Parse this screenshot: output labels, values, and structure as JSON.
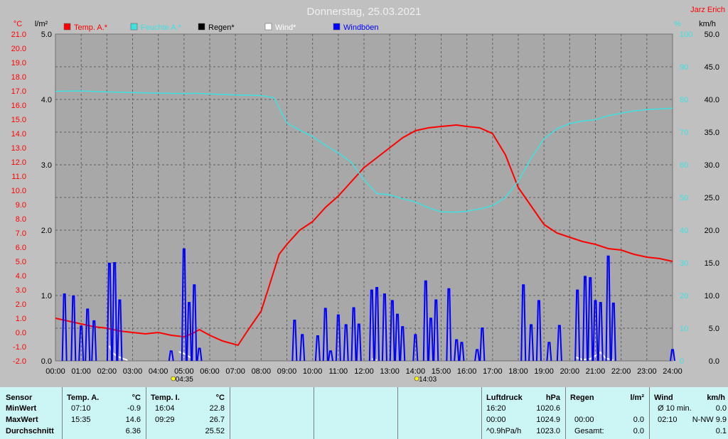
{
  "title": "Donnerstag, 25.03.2021",
  "station": "Jarz Erich",
  "units": {
    "temp": "°C",
    "rain": "l/m²",
    "hum": "%",
    "wind": "km/h"
  },
  "legend": [
    {
      "label": "Temp. A.*",
      "color": "#ff0000"
    },
    {
      "label": "Feuchte A.*",
      "color": "#40e0e0"
    },
    {
      "label": "Regen*",
      "color": "#000000"
    },
    {
      "label": "Wind*",
      "color": "#ffffff"
    },
    {
      "label": "Windböen",
      "color": "#0000ff"
    }
  ],
  "markers": [
    {
      "x": "04:35",
      "label": "04:35"
    },
    {
      "x": "14:03",
      "label": "14:03"
    }
  ],
  "chart_data": {
    "type": "line",
    "x_ticks": [
      "00:00",
      "01:00",
      "02:00",
      "03:00",
      "04:00",
      "05:00",
      "06:00",
      "07:00",
      "08:00",
      "09:00",
      "10:00",
      "11:00",
      "12:00",
      "13:00",
      "14:00",
      "15:00",
      "16:00",
      "17:00",
      "18:00",
      "19:00",
      "20:00",
      "21:00",
      "22:00",
      "23:00",
      "24:00"
    ],
    "temp_axis": {
      "label": "°C",
      "min": -2.0,
      "max": 21.0,
      "ticks": [
        "-2.0",
        "-1.0",
        "0.0",
        "1.0",
        "2.0",
        "3.0",
        "4.0",
        "5.0",
        "6.0",
        "7.0",
        "8.0",
        "9.0",
        "10.0",
        "11.0",
        "12.0",
        "13.0",
        "14.0",
        "15.0",
        "16.0",
        "17.0",
        "18.0",
        "19.0",
        "20.0",
        "21.0"
      ]
    },
    "rain_axis": {
      "label": "l/m²",
      "min": 0,
      "max": 5.0,
      "ticks": [
        "0.0",
        "1.0",
        "2.0",
        "3.0",
        "4.0",
        "5.0"
      ]
    },
    "hum_axis": {
      "label": "%",
      "min": 0,
      "max": 100,
      "ticks": [
        "0",
        "10",
        "20",
        "30",
        "40",
        "50",
        "60",
        "70",
        "80",
        "90",
        "100"
      ]
    },
    "wind_axis": {
      "label": "km/h",
      "min": 0,
      "max": 50,
      "ticks": [
        "0.0",
        "5.0",
        "10.0",
        "15.0",
        "20.0",
        "25.0",
        "30.0",
        "35.0",
        "40.0",
        "45.0",
        "50.0"
      ]
    },
    "series": [
      {
        "name": "Temp. A.*",
        "color": "#ff0000",
        "axis": "temp",
        "points": [
          [
            0,
            1.0
          ],
          [
            0.5,
            0.8
          ],
          [
            1,
            0.6
          ],
          [
            1.5,
            0.4
          ],
          [
            2,
            0.3
          ],
          [
            2.5,
            0.1
          ],
          [
            3,
            0.0
          ],
          [
            3.5,
            -0.1
          ],
          [
            4,
            0.0
          ],
          [
            4.5,
            -0.2
          ],
          [
            5,
            -0.3
          ],
          [
            5.3,
            -0.1
          ],
          [
            5.6,
            0.2
          ],
          [
            6,
            -0.2
          ],
          [
            6.5,
            -0.6
          ],
          [
            7.1,
            -0.9
          ],
          [
            7.5,
            0.2
          ],
          [
            8,
            1.5
          ],
          [
            8.3,
            3.2
          ],
          [
            8.7,
            5.5
          ],
          [
            9,
            6.2
          ],
          [
            9.5,
            7.2
          ],
          [
            10,
            7.8
          ],
          [
            10.5,
            8.8
          ],
          [
            11,
            9.6
          ],
          [
            11.5,
            10.6
          ],
          [
            12,
            11.6
          ],
          [
            12.5,
            12.3
          ],
          [
            13,
            13.0
          ],
          [
            13.5,
            13.7
          ],
          [
            14,
            14.2
          ],
          [
            14.5,
            14.4
          ],
          [
            15,
            14.5
          ],
          [
            15.6,
            14.6
          ],
          [
            16,
            14.5
          ],
          [
            16.5,
            14.4
          ],
          [
            17,
            14.0
          ],
          [
            17.5,
            12.5
          ],
          [
            18,
            10.2
          ],
          [
            18.5,
            8.9
          ],
          [
            19,
            7.6
          ],
          [
            19.5,
            7.0
          ],
          [
            20,
            6.7
          ],
          [
            20.5,
            6.4
          ],
          [
            21,
            6.2
          ],
          [
            21.5,
            5.9
          ],
          [
            22,
            5.8
          ],
          [
            22.5,
            5.5
          ],
          [
            23,
            5.3
          ],
          [
            23.5,
            5.2
          ],
          [
            24,
            5.0
          ]
        ]
      },
      {
        "name": "Feuchte A.*",
        "color": "#40e0e0",
        "axis": "hum",
        "points": [
          [
            0,
            82.5
          ],
          [
            1,
            82.6
          ],
          [
            2,
            82.3
          ],
          [
            3,
            82.1
          ],
          [
            4,
            81.9
          ],
          [
            5,
            81.8
          ],
          [
            5.5,
            81.9
          ],
          [
            6,
            81.7
          ],
          [
            7,
            81.4
          ],
          [
            8,
            81.2
          ],
          [
            8.5,
            80.5
          ],
          [
            9,
            72.8
          ],
          [
            9.5,
            70.6
          ],
          [
            10,
            68.6
          ],
          [
            10.5,
            66.0
          ],
          [
            11,
            63.6
          ],
          [
            11.5,
            60.8
          ],
          [
            12,
            55.4
          ],
          [
            12.5,
            51.2
          ],
          [
            13,
            50.8
          ],
          [
            13.5,
            49.6
          ],
          [
            14,
            48.6
          ],
          [
            14.5,
            46.9
          ],
          [
            15,
            45.6
          ],
          [
            15.6,
            45.5
          ],
          [
            16,
            45.8
          ],
          [
            16.5,
            46.5
          ],
          [
            17,
            47.5
          ],
          [
            17.5,
            50.0
          ],
          [
            18,
            55.0
          ],
          [
            18.5,
            62.0
          ],
          [
            19,
            68.0
          ],
          [
            19.5,
            71.0
          ],
          [
            20,
            72.6
          ],
          [
            20.5,
            73.4
          ],
          [
            21,
            73.8
          ],
          [
            21.5,
            75.0
          ],
          [
            22,
            75.8
          ],
          [
            22.5,
            76.5
          ],
          [
            23,
            76.9
          ],
          [
            23.5,
            77.1
          ],
          [
            24,
            77.3
          ]
        ]
      },
      {
        "name": "Wind*",
        "color": "#ffffff",
        "axis": "wind",
        "points": [
          [
            2.1,
            2.3
          ],
          [
            2.2,
            1.3
          ],
          [
            2.4,
            0.7
          ],
          [
            2.6,
            0.4
          ],
          [
            2.8,
            0.1
          ],
          [
            4.8,
            1.4
          ],
          [
            5.0,
            1.1
          ],
          [
            5.3,
            0.4
          ],
          [
            12.3,
            0.3
          ],
          [
            12.5,
            0.1
          ],
          [
            20.2,
            0.6
          ],
          [
            20.5,
            0.2
          ],
          [
            20.8,
            0.3
          ],
          [
            21.2,
            1.3
          ],
          [
            21.4,
            0.4
          ],
          [
            21.7,
            0.1
          ]
        ]
      },
      {
        "name": "Windböen",
        "color": "#0000ff",
        "axis": "wind",
        "spikes": [
          [
            0.35,
            10.2
          ],
          [
            0.7,
            9.9
          ],
          [
            1.0,
            5.3
          ],
          [
            1.25,
            7.9
          ],
          [
            1.5,
            6.1
          ],
          [
            2.1,
            14.9
          ],
          [
            2.3,
            15.0
          ],
          [
            2.5,
            9.3
          ],
          [
            4.5,
            1.5
          ],
          [
            5.0,
            17.1
          ],
          [
            5.2,
            8.9
          ],
          [
            5.4,
            11.6
          ],
          [
            5.6,
            1.9
          ],
          [
            9.3,
            6.2
          ],
          [
            9.6,
            4.0
          ],
          [
            10.2,
            3.8
          ],
          [
            10.5,
            8.0
          ],
          [
            10.7,
            1.5
          ],
          [
            11.0,
            7.0
          ],
          [
            11.3,
            5.5
          ],
          [
            11.6,
            8.1
          ],
          [
            11.8,
            5.6
          ],
          [
            12.3,
            10.8
          ],
          [
            12.5,
            11.2
          ],
          [
            12.8,
            10.2
          ],
          [
            13.1,
            9.2
          ],
          [
            13.3,
            7.1
          ],
          [
            13.5,
            5.2
          ],
          [
            14.0,
            4.0
          ],
          [
            14.4,
            12.2
          ],
          [
            14.6,
            6.5
          ],
          [
            14.8,
            9.3
          ],
          [
            15.3,
            11.0
          ],
          [
            15.6,
            3.2
          ],
          [
            15.8,
            2.8
          ],
          [
            16.4,
            1.7
          ],
          [
            16.6,
            5.0
          ],
          [
            18.2,
            11.6
          ],
          [
            18.5,
            5.5
          ],
          [
            18.8,
            9.2
          ],
          [
            19.2,
            2.8
          ],
          [
            19.6,
            5.4
          ],
          [
            20.3,
            10.8
          ],
          [
            20.6,
            12.9
          ],
          [
            20.8,
            12.7
          ],
          [
            21.0,
            9.2
          ],
          [
            21.2,
            8.9
          ],
          [
            21.5,
            16.0
          ],
          [
            21.7,
            8.8
          ],
          [
            24.0,
            1.7
          ]
        ]
      }
    ]
  },
  "stats": {
    "headers": {
      "sensor": "Sensor",
      "temp_a": "Temp. A.",
      "temp_a_unit": "°C",
      "temp_i": "Temp. I.",
      "temp_i_unit": "°C",
      "pressure": "Luftdruck",
      "pressure_unit": "hPa",
      "rain": "Regen",
      "rain_unit": "l/m²",
      "wind": "Wind",
      "wind_unit": "km/h"
    },
    "rows": [
      {
        "label": "MinWert",
        "ta_time": "07:10",
        "ta_val": "-0.9",
        "ti_time": "16:04",
        "ti_val": "22.8",
        "p_time": "16:20",
        "p_val": "1020.6",
        "r_time": "",
        "r_val": "",
        "w_time": "Ø 10 min.",
        "w_val": "0.0"
      },
      {
        "label": "MaxWert",
        "ta_time": "15:35",
        "ta_val": "14.6",
        "ti_time": "09:29",
        "ti_val": "26.7",
        "p_time": "00:00",
        "p_val": "1024.9",
        "r_time": "00:00",
        "r_val": "0.0",
        "w_time": "02:10",
        "w_val": "N-NW 9.9"
      },
      {
        "label": "Durchschnitt",
        "ta_time": "",
        "ta_val": "6.36",
        "ti_time": "",
        "ti_val": "25.52",
        "p_time": "^0.9hPa/h",
        "p_val": "1023.0",
        "r_time": "Gesamt:",
        "r_val": "0.0",
        "w_time": "",
        "w_val": "0.1"
      }
    ]
  }
}
